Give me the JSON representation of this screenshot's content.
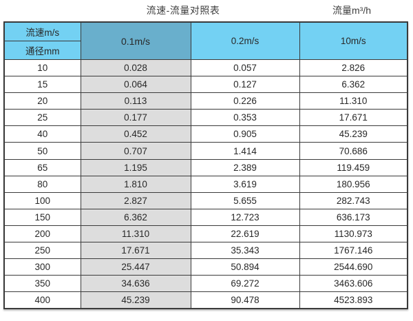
{
  "captions": {
    "title": "流速-流量对照表",
    "unit_label": "流量m³/h"
  },
  "table": {
    "corner_top": "流速m/s",
    "corner_bottom": "通径mm",
    "columns": [
      "0.1m/s",
      "0.2m/s",
      "10m/s"
    ],
    "rows": [
      {
        "dn": "10",
        "values": [
          "0.028",
          "0.057",
          "2.826"
        ]
      },
      {
        "dn": "15",
        "values": [
          "0.064",
          "0.127",
          "6.362"
        ]
      },
      {
        "dn": "20",
        "values": [
          "0.113",
          "0.226",
          "11.310"
        ]
      },
      {
        "dn": "25",
        "values": [
          "0.177",
          "0.353",
          "17.671"
        ]
      },
      {
        "dn": "40",
        "values": [
          "0.452",
          "0.905",
          "45.239"
        ]
      },
      {
        "dn": "50",
        "values": [
          "0.707",
          "1.414",
          "70.686"
        ]
      },
      {
        "dn": "65",
        "values": [
          "1.195",
          "2.389",
          "119.459"
        ]
      },
      {
        "dn": "80",
        "values": [
          "1.810",
          "3.619",
          "180.956"
        ]
      },
      {
        "dn": "100",
        "values": [
          "2.827",
          "5.655",
          "282.743"
        ]
      },
      {
        "dn": "150",
        "values": [
          "6.362",
          "12.723",
          "636.173"
        ]
      },
      {
        "dn": "200",
        "values": [
          "11.310",
          "22.619",
          "1130.973"
        ]
      },
      {
        "dn": "250",
        "values": [
          "17.671",
          "35.343",
          "1767.146"
        ]
      },
      {
        "dn": "300",
        "values": [
          "25.447",
          "50.894",
          "2544.690"
        ]
      },
      {
        "dn": "350",
        "values": [
          "34.636",
          "69.272",
          "3463.606"
        ]
      },
      {
        "dn": "400",
        "values": [
          "45.239",
          "90.478",
          "4523.893"
        ]
      }
    ]
  },
  "colors": {
    "header_blue": "#73d1f3",
    "header_steel_blue": "#69afcc",
    "shaded_column_gray": "#dddddd",
    "border": "#3a3a3a",
    "text": "#282828"
  },
  "chart_data": {
    "type": "table",
    "title": "流速-流量对照表",
    "unit": "流量m³/h",
    "row_axis_label": "通径mm",
    "col_axis_label": "流速m/s",
    "columns": [
      "0.1m/s",
      "0.2m/s",
      "10m/s"
    ],
    "diameters_mm": [
      10,
      15,
      20,
      25,
      40,
      50,
      65,
      80,
      100,
      150,
      200,
      250,
      300,
      350,
      400
    ],
    "series": [
      {
        "name": "0.1m/s",
        "values": [
          0.028,
          0.064,
          0.113,
          0.177,
          0.452,
          0.707,
          1.195,
          1.81,
          2.827,
          6.362,
          11.31,
          17.671,
          25.447,
          34.636,
          45.239
        ]
      },
      {
        "name": "0.2m/s",
        "values": [
          0.057,
          0.127,
          0.226,
          0.353,
          0.905,
          1.414,
          2.389,
          3.619,
          5.655,
          12.723,
          22.619,
          35.343,
          50.894,
          69.272,
          90.478
        ]
      },
      {
        "name": "10m/s",
        "values": [
          2.826,
          6.362,
          11.31,
          17.671,
          45.239,
          70.686,
          119.459,
          180.956,
          282.743,
          636.173,
          1130.973,
          1767.146,
          2544.69,
          3463.606,
          4523.893
        ]
      }
    ]
  }
}
